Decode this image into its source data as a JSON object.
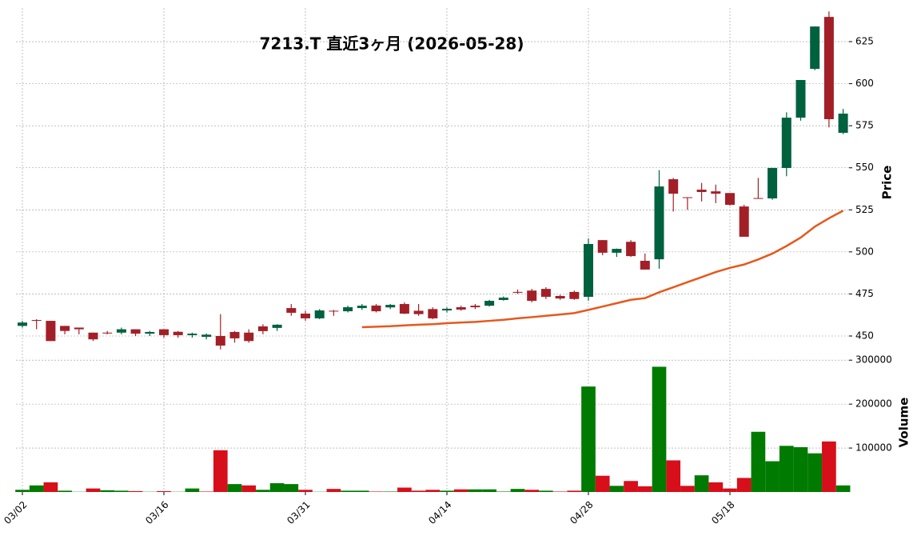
{
  "chart_data": {
    "type": "candlestick",
    "title": "7213.T  直近3ヶ月  (2026-05-28)",
    "y_label": "Price",
    "y2_label": "Volume",
    "categories": [
      "03/02",
      null,
      null,
      null,
      null,
      null,
      null,
      null,
      null,
      null,
      "03/16",
      null,
      null,
      null,
      null,
      null,
      null,
      null,
      null,
      null,
      "03/31",
      null,
      null,
      null,
      null,
      null,
      null,
      null,
      null,
      null,
      "04/14",
      null,
      null,
      null,
      null,
      null,
      null,
      null,
      null,
      null,
      "04/28",
      null,
      null,
      null,
      null,
      null,
      null,
      null,
      null,
      null,
      "05/18",
      null,
      null,
      null,
      null,
      null,
      null,
      null,
      null
    ],
    "open": [
      456,
      459.5,
      459,
      456,
      455,
      452,
      452,
      452,
      454,
      451.4,
      454,
      452.5,
      450.5,
      449.5,
      450,
      452.4,
      452,
      455.7,
      454.8,
      466.6,
      463.3,
      460.5,
      465,
      464.7,
      466.6,
      468.1,
      467,
      469,
      465,
      466,
      465.2,
      467.1,
      468,
      468,
      471.4,
      476.2,
      477,
      478,
      473.8,
      476.2,
      473.3,
      507,
      499.5,
      506,
      494.7,
      495.6,
      543.2,
      532.5,
      537,
      536,
      535,
      527,
      532,
      531.8,
      549.9,
      579.8,
      608.8,
      639.7,
      570.8
    ],
    "high": [
      459,
      460,
      459,
      456,
      455,
      452,
      453,
      455,
      454,
      453,
      454,
      453,
      452,
      451.5,
      463,
      453,
      454,
      457,
      457,
      469,
      465,
      466,
      465.5,
      468,
      469,
      469,
      469,
      470,
      469,
      467,
      467,
      468,
      469,
      471.5,
      473.5,
      477.6,
      478,
      479,
      474.5,
      477,
      508,
      507,
      502,
      507,
      499,
      548.6,
      544,
      532.5,
      541,
      540,
      535,
      528,
      544,
      550,
      583,
      602,
      634,
      643,
      585
    ],
    "low": [
      455,
      454,
      447,
      451,
      451,
      447,
      451,
      451,
      450,
      450,
      449,
      449,
      449,
      448,
      442,
      446,
      446,
      451,
      453,
      462,
      459,
      460,
      462,
      464,
      465.5,
      464,
      466,
      463,
      462,
      460,
      464,
      465,
      466,
      467.5,
      471,
      475,
      470,
      472,
      471.5,
      471.5,
      471,
      498,
      497,
      497,
      489.5,
      490,
      524,
      525,
      530,
      529,
      527.5,
      509,
      531.8,
      531,
      545,
      578,
      608,
      574,
      570
    ],
    "close": [
      458,
      459,
      447,
      453,
      454,
      448,
      451.5,
      454,
      451.4,
      452.4,
      450.5,
      450.5,
      451.4,
      450.8,
      444.3,
      448.6,
      447,
      452.9,
      456.7,
      463.8,
      460.5,
      465.2,
      464.8,
      467.1,
      468,
      464.7,
      468.5,
      463.3,
      463,
      460.5,
      466.2,
      465.7,
      467.1,
      470.9,
      472.8,
      475.7,
      470.9,
      473.3,
      472.3,
      472,
      504.7,
      499.5,
      501.8,
      497.5,
      489.5,
      538.9,
      534.6,
      532.3,
      535.6,
      534.6,
      528,
      509,
      531.8,
      549.9,
      579.8,
      602.2,
      634,
      578.9,
      582.2
    ],
    "volume": [
      5000,
      15000,
      22000,
      3000,
      500,
      8000,
      4000,
      3000,
      2000,
      500,
      2000,
      500,
      8000,
      1000,
      95000,
      18000,
      15000,
      5000,
      20000,
      18000,
      5000,
      500,
      7000,
      3000,
      3000,
      1000,
      1000,
      10000,
      3000,
      5000,
      3000,
      6000,
      6000,
      6000,
      1000,
      7000,
      5000,
      3000,
      1000,
      3000,
      240000,
      37000,
      14000,
      25000,
      13000,
      285000,
      72000,
      14000,
      38000,
      22000,
      8000,
      32000,
      137000,
      70000,
      105000,
      102000,
      88000,
      115000,
      15000
    ],
    "ma": [
      null,
      null,
      null,
      null,
      null,
      null,
      null,
      null,
      null,
      null,
      null,
      null,
      null,
      null,
      null,
      null,
      null,
      null,
      null,
      null,
      null,
      null,
      null,
      null,
      455.2,
      455.5,
      455.8,
      456.3,
      456.7,
      457,
      457.6,
      458,
      458.4,
      459,
      459.6,
      460.5,
      461.2,
      462,
      462.8,
      463.6,
      465.5,
      467.5,
      469.5,
      471.5,
      472.5,
      476,
      479,
      482,
      485,
      488,
      490.5,
      492.5,
      495.5,
      499,
      503.5,
      508.5,
      515,
      520,
      524.5
    ],
    "up_color": "#00613f",
    "down_color": "#a31f27",
    "volume_up_color": "#007a00",
    "volume_down_color": "#d60f1a",
    "ma_color": "#e8571b",
    "ylim": [
      445,
      645
    ],
    "yticks": [
      450,
      475,
      500,
      525,
      550,
      575,
      600,
      625
    ],
    "y2lim": [
      0,
      304000
    ],
    "y2ticks": [
      100000,
      200000,
      300000
    ],
    "grid": true
  }
}
